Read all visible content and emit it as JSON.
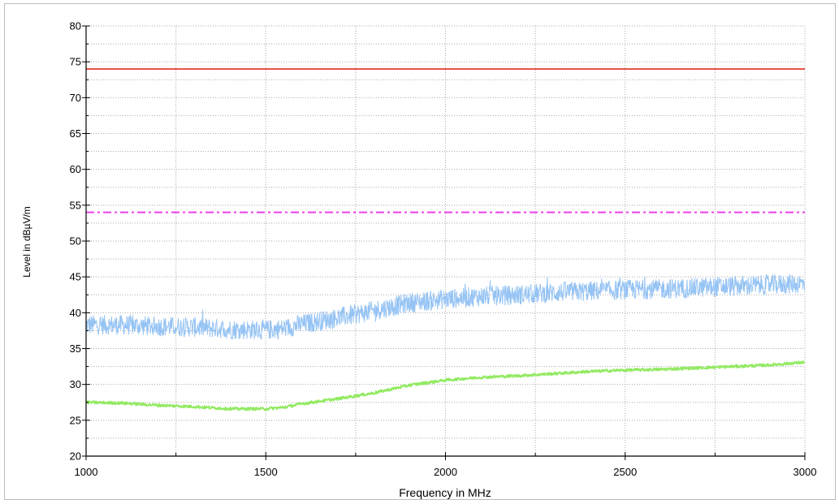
{
  "chart_data": {
    "type": "line",
    "title": "",
    "xlabel": "Frequency in MHz",
    "ylabel": "Level in dBµV/m",
    "xlim": [
      1000,
      3000
    ],
    "ylim": [
      20,
      80
    ],
    "x_ticks": [
      1000,
      1500,
      2000,
      2500,
      3000
    ],
    "x_tick_labels": [
      "1000",
      "1500",
      "2000",
      "2500",
      "3000"
    ],
    "x_minor_ticks": [
      1250,
      1750,
      2250,
      2750
    ],
    "y_ticks": [
      20,
      25,
      30,
      35,
      40,
      45,
      50,
      55,
      60,
      65,
      70,
      75,
      80
    ],
    "y_tick_labels": [
      "20",
      "25",
      "30",
      "35",
      "40",
      "45",
      "50",
      "55",
      "60",
      "65",
      "70",
      "75",
      "80"
    ],
    "grid": true,
    "series": [
      {
        "color": "#e8534a",
        "style": "solid",
        "x": [
          1000,
          3000
        ],
        "y": [
          74,
          74
        ]
      },
      {
        "color": "#ee3ee8",
        "style": "dash-dot",
        "x": [
          1000,
          3000
        ],
        "y": [
          54,
          54
        ]
      },
      {
        "color": "#95c3f4",
        "style": "noisy",
        "noise_band": 1.4,
        "x": [
          1000,
          1100,
          1200,
          1300,
          1400,
          1500,
          1550,
          1600,
          1700,
          1800,
          1900,
          2000,
          2100,
          2200,
          2300,
          2400,
          2500,
          2600,
          2700,
          2800,
          2900,
          3000
        ],
        "y": [
          38.3,
          38.3,
          38.1,
          38.0,
          37.7,
          37.6,
          37.8,
          38.4,
          39.3,
          40.3,
          41.4,
          41.9,
          42.3,
          42.5,
          42.8,
          43.0,
          43.2,
          43.3,
          43.5,
          43.7,
          43.9,
          44.1
        ]
      },
      {
        "color": "#92ea62",
        "style": "solid",
        "x": [
          1000,
          1100,
          1200,
          1300,
          1400,
          1500,
          1550,
          1600,
          1700,
          1800,
          1900,
          2000,
          2100,
          2200,
          2300,
          2400,
          2500,
          2600,
          2700,
          2800,
          2900,
          3000
        ],
        "y": [
          27.5,
          27.4,
          27.1,
          26.9,
          26.6,
          26.6,
          26.8,
          27.3,
          28.0,
          28.8,
          29.9,
          30.6,
          31.0,
          31.2,
          31.5,
          31.8,
          32.0,
          32.1,
          32.3,
          32.5,
          32.7,
          33.1
        ]
      }
    ]
  }
}
